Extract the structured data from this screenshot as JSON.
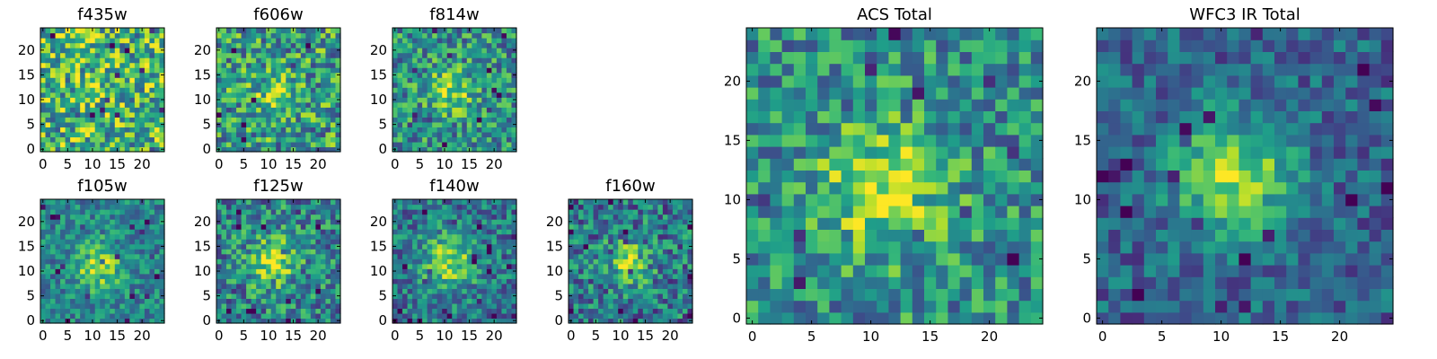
{
  "figure": {
    "background": "#ffffff",
    "colormap": "viridis"
  },
  "chart_data": [
    {
      "type": "heatmap",
      "title": "f435w",
      "grid_size": 25,
      "xlim": [
        -0.5,
        24.5
      ],
      "ylim": [
        -0.5,
        24.5
      ],
      "xticks": [
        0,
        5,
        10,
        15,
        20
      ],
      "yticks": [
        0,
        5,
        10,
        15,
        20
      ],
      "profile": {
        "seed": 11,
        "center": [
          11,
          11
        ],
        "peak": 0.1,
        "sigma": 4.0,
        "base": 0.65,
        "noise": 0.38
      }
    },
    {
      "type": "heatmap",
      "title": "f606w",
      "grid_size": 25,
      "xlim": [
        -0.5,
        24.5
      ],
      "ylim": [
        -0.5,
        24.5
      ],
      "xticks": [
        0,
        5,
        10,
        15,
        20
      ],
      "yticks": [
        0,
        5,
        10,
        15,
        20
      ],
      "profile": {
        "seed": 22,
        "center": [
          11,
          11
        ],
        "peak": 0.25,
        "sigma": 3.0,
        "base": 0.55,
        "noise": 0.35
      }
    },
    {
      "type": "heatmap",
      "title": "f814w",
      "grid_size": 25,
      "xlim": [
        -0.5,
        24.5
      ],
      "ylim": [
        -0.5,
        24.5
      ],
      "xticks": [
        0,
        5,
        10,
        15,
        20
      ],
      "yticks": [
        0,
        5,
        10,
        15,
        20
      ],
      "profile": {
        "seed": 33,
        "center": [
          11,
          12
        ],
        "peak": 0.35,
        "sigma": 3.0,
        "base": 0.5,
        "noise": 0.3
      }
    },
    {
      "type": "heatmap",
      "title": "f105w",
      "grid_size": 25,
      "xlim": [
        -0.5,
        24.5
      ],
      "ylim": [
        -0.5,
        24.5
      ],
      "xticks": [
        0,
        5,
        10,
        15,
        20
      ],
      "yticks": [
        0,
        5,
        10,
        15,
        20
      ],
      "profile": {
        "seed": 44,
        "center": [
          11,
          11
        ],
        "peak": 0.45,
        "sigma": 3.2,
        "base": 0.45,
        "noise": 0.22
      }
    },
    {
      "type": "heatmap",
      "title": "f125w",
      "grid_size": 25,
      "xlim": [
        -0.5,
        24.5
      ],
      "ylim": [
        -0.5,
        24.5
      ],
      "xticks": [
        0,
        5,
        10,
        15,
        20
      ],
      "yticks": [
        0,
        5,
        10,
        15,
        20
      ],
      "profile": {
        "seed": 55,
        "center": [
          11,
          12
        ],
        "peak": 0.4,
        "sigma": 3.5,
        "base": 0.45,
        "noise": 0.3
      }
    },
    {
      "type": "heatmap",
      "title": "f140w",
      "grid_size": 25,
      "xlim": [
        -0.5,
        24.5
      ],
      "ylim": [
        -0.5,
        24.5
      ],
      "xticks": [
        0,
        5,
        10,
        15,
        20
      ],
      "yticks": [
        0,
        5,
        10,
        15,
        20
      ],
      "profile": {
        "seed": 66,
        "center": [
          11,
          12
        ],
        "peak": 0.45,
        "sigma": 3.8,
        "base": 0.4,
        "noise": 0.25
      }
    },
    {
      "type": "heatmap",
      "title": "f160w",
      "grid_size": 25,
      "xlim": [
        -0.5,
        24.5
      ],
      "ylim": [
        -0.5,
        24.5
      ],
      "xticks": [
        0,
        5,
        10,
        15,
        20
      ],
      "yticks": [
        0,
        5,
        10,
        15,
        20
      ],
      "profile": {
        "seed": 77,
        "center": [
          12,
          12
        ],
        "peak": 0.5,
        "sigma": 3.0,
        "base": 0.4,
        "noise": 0.3
      }
    },
    {
      "type": "heatmap",
      "title": "ACS Total",
      "grid_size": 25,
      "xlim": [
        -0.5,
        24.5
      ],
      "ylim": [
        -0.5,
        24.5
      ],
      "xticks": [
        0,
        5,
        10,
        15,
        20
      ],
      "yticks": [
        0,
        5,
        10,
        15,
        20
      ],
      "profile": {
        "seed": 88,
        "center": [
          11,
          11
        ],
        "peak": 0.42,
        "sigma": 3.5,
        "base": 0.5,
        "noise": 0.28
      }
    },
    {
      "type": "heatmap",
      "title": "WFC3 IR Total",
      "grid_size": 25,
      "xlim": [
        -0.5,
        24.5
      ],
      "ylim": [
        -0.5,
        24.5
      ],
      "xticks": [
        0,
        5,
        10,
        15,
        20
      ],
      "yticks": [
        0,
        5,
        10,
        15,
        20
      ],
      "profile": {
        "seed": 99,
        "center": [
          11,
          12
        ],
        "peak": 0.55,
        "sigma": 3.5,
        "base": 0.32,
        "noise": 0.2
      }
    }
  ]
}
